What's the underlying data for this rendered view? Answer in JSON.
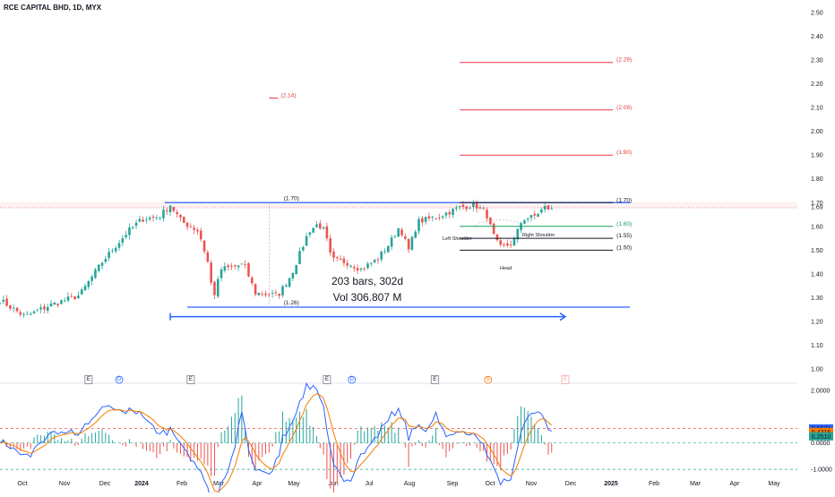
{
  "symbol_title": "RCE CAPITAL BHD, 1D, MYX",
  "chart_data": {
    "type": "candlestick",
    "ylim": [
      0.95,
      2.52
    ],
    "price_ticks": [
      "2.50",
      "2.40",
      "2.30",
      "2.20",
      "2.10",
      "2.00",
      "1.90",
      "1.80",
      "1.70",
      "1.69",
      "1.60",
      "1.50",
      "1.40",
      "1.30",
      "1.20",
      "1.10",
      "1.00"
    ],
    "time_ticks": [
      "Oct",
      "Nov",
      "Dec",
      "2024",
      "Feb",
      "Mar",
      "Apr",
      "May",
      "Jun",
      "Jul",
      "Aug",
      "Sep",
      "Oct",
      "Nov",
      "Dec",
      "2025",
      "Feb",
      "Mar",
      "Apr",
      "May"
    ],
    "last_price_label": "1.69",
    "price_anchors": [
      {
        "d": 0,
        "p": 1.29
      },
      {
        "d": 22,
        "p": 1.22
      },
      {
        "d": 45,
        "p": 1.27
      },
      {
        "d": 70,
        "p": 1.31
      },
      {
        "d": 90,
        "p": 1.45
      },
      {
        "d": 113,
        "p": 1.58
      },
      {
        "d": 125,
        "p": 1.63
      },
      {
        "d": 140,
        "p": 1.64
      },
      {
        "d": 150,
        "p": 1.69
      },
      {
        "d": 160,
        "p": 1.62
      },
      {
        "d": 175,
        "p": 1.58
      },
      {
        "d": 183,
        "p": 1.45
      },
      {
        "d": 188,
        "p": 1.3
      },
      {
        "d": 195,
        "p": 1.42
      },
      {
        "d": 215,
        "p": 1.44
      },
      {
        "d": 225,
        "p": 1.32
      },
      {
        "d": 245,
        "p": 1.31
      },
      {
        "d": 257,
        "p": 1.4
      },
      {
        "d": 272,
        "p": 1.58
      },
      {
        "d": 280,
        "p": 1.61
      },
      {
        "d": 286,
        "p": 1.58
      },
      {
        "d": 292,
        "p": 1.46
      },
      {
        "d": 305,
        "p": 1.45
      },
      {
        "d": 318,
        "p": 1.42
      },
      {
        "d": 332,
        "p": 1.46
      },
      {
        "d": 342,
        "p": 1.52
      },
      {
        "d": 352,
        "p": 1.6
      },
      {
        "d": 360,
        "p": 1.5
      },
      {
        "d": 368,
        "p": 1.62
      },
      {
        "d": 385,
        "p": 1.64
      },
      {
        "d": 395,
        "p": 1.66
      },
      {
        "d": 405,
        "p": 1.68
      },
      {
        "d": 418,
        "p": 1.69
      },
      {
        "d": 428,
        "p": 1.66
      },
      {
        "d": 434,
        "p": 1.57
      },
      {
        "d": 440,
        "p": 1.51
      },
      {
        "d": 452,
        "p": 1.53
      },
      {
        "d": 460,
        "p": 1.63
      },
      {
        "d": 470,
        "p": 1.64
      },
      {
        "d": 480,
        "p": 1.68
      },
      {
        "d": 486,
        "p": 1.67
      }
    ],
    "horizontal_levels": [
      {
        "label": "(2.29)",
        "price": 2.29,
        "color": "#f23645",
        "d_from": 405,
        "d_to": 540
      },
      {
        "label": "(2.09)",
        "price": 2.09,
        "color": "#f23645",
        "d_from": 405,
        "d_to": 540
      },
      {
        "label": "(1.90)",
        "price": 1.9,
        "color": "#f23645",
        "d_from": 405,
        "d_to": 540
      },
      {
        "label": "(1.70)",
        "price": 1.7,
        "color": "#131722",
        "d_from": 405,
        "d_to": 540
      },
      {
        "label": "(1.60)",
        "price": 1.6,
        "color": "#189e5c",
        "d_from": 405,
        "d_to": 540
      },
      {
        "label": "(1.55)",
        "price": 1.55,
        "color": "#131722",
        "d_from": 405,
        "d_to": 540
      },
      {
        "label": "(1.50)",
        "price": 1.5,
        "color": "#131722",
        "d_from": 405,
        "d_to": 540
      }
    ],
    "target_2_14": {
      "label": "(2.14)",
      "price": 2.14,
      "d_from": 237,
      "d_to": 245
    },
    "range_measure": {
      "top_price": 1.7,
      "bottom_price": 1.26,
      "d_from": 145,
      "d_to": 555,
      "top_label": "(1.70)",
      "bottom_label": "(1.26)",
      "label_d": 250
    },
    "date_range_arrow": {
      "price": 1.22,
      "d_from": 150,
      "d_to": 498
    },
    "measure_label": {
      "bars": "203 bars, 302d",
      "volume": "Vol 306.807 M"
    },
    "pattern_labels": {
      "left_shoulder": "Left Shoulder",
      "head": "Head",
      "right_shoulder": "Right Shoulder"
    },
    "event_badges": [
      {
        "d": 78,
        "text": "E",
        "kind": "earnings"
      },
      {
        "d": 105,
        "text": "D",
        "kind": "dividend"
      },
      {
        "d": 168,
        "text": "E",
        "kind": "earnings"
      },
      {
        "d": 288,
        "text": "E",
        "kind": "earnings"
      },
      {
        "d": 310,
        "text": "D",
        "kind": "dividend"
      },
      {
        "d": 383,
        "text": "E",
        "kind": "earnings"
      },
      {
        "d": 430,
        "text": "S",
        "kind": "split"
      },
      {
        "d": 498,
        "text": "E",
        "kind": "earnings-future"
      }
    ],
    "oscillator": {
      "ylim": [
        -1.2,
        2.2
      ],
      "ticks": [
        "2.0000",
        "0.0000",
        "-1.0000"
      ],
      "level_lines": [
        0.55,
        0.0,
        -1.0
      ],
      "value_labels": [
        {
          "text": "0.5571",
          "value": 0.5571,
          "color": "#2962ff"
        },
        {
          "text": "0.4216",
          "value": 0.4216,
          "color": "#f57c00"
        },
        {
          "text": "0.2510",
          "value": 0.251,
          "color": "#26a69a"
        }
      ]
    },
    "colors": {
      "up": "#26a69a",
      "down": "#ef5350",
      "blue": "#2962ff",
      "red_level": "#f23645",
      "green_level": "#189e5c",
      "orange": "#f57c00"
    }
  }
}
